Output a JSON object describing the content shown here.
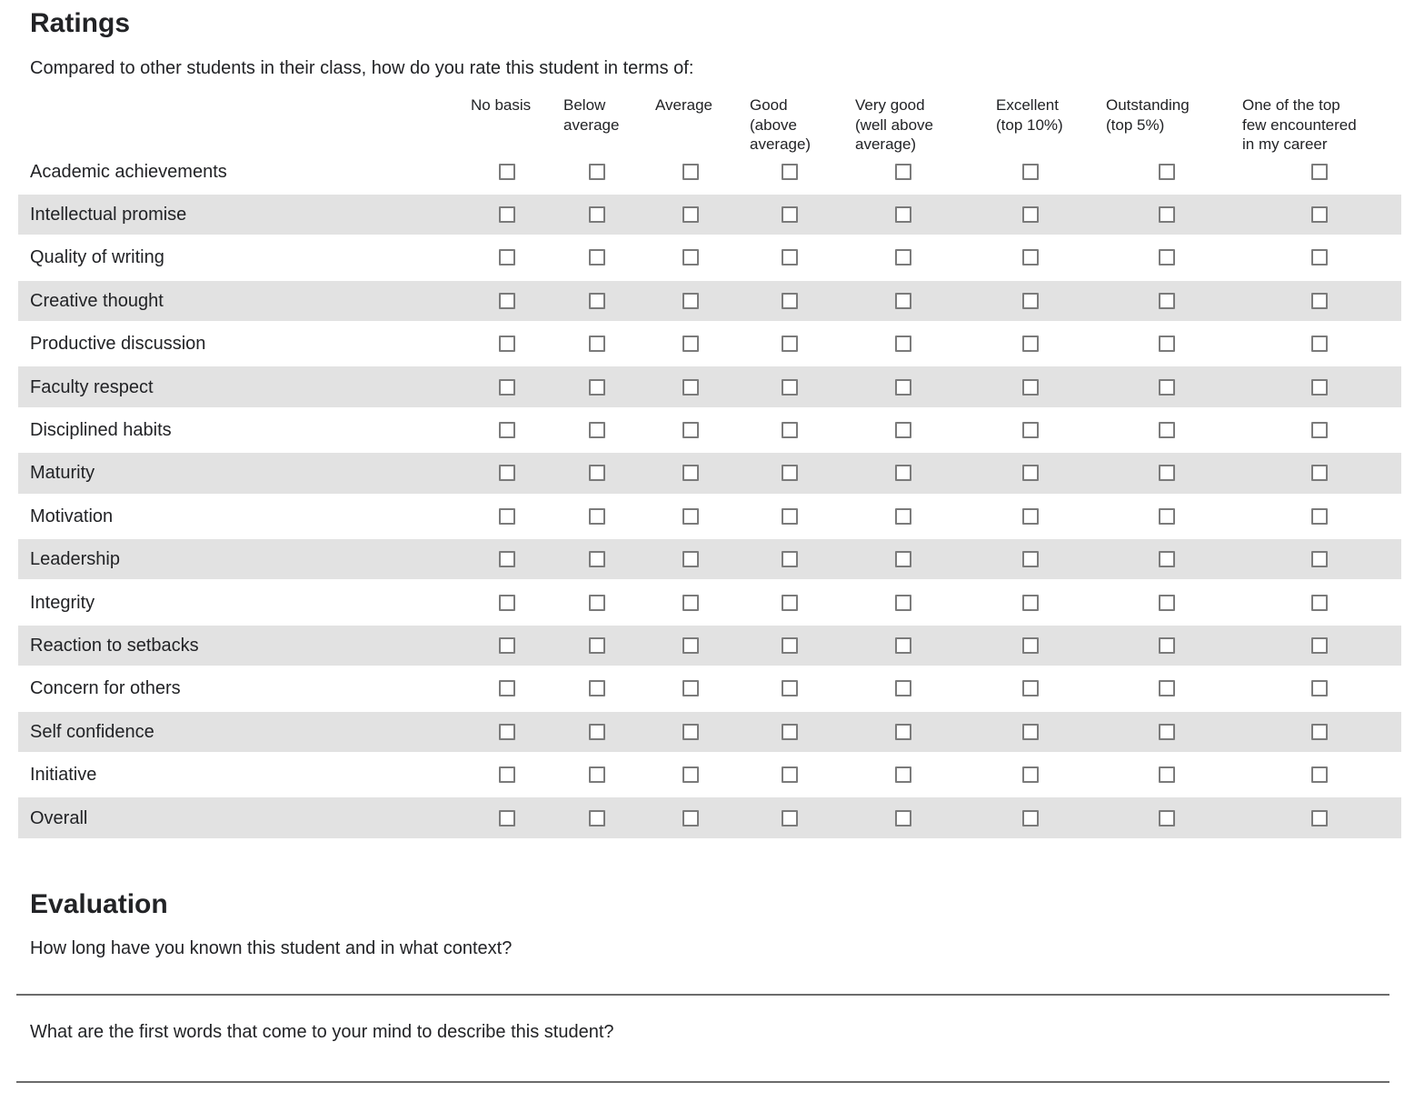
{
  "ratings": {
    "title": "Ratings",
    "intro": "Compared to other students in their class, how do you rate this student in terms of:",
    "columns": [
      {
        "label": "No basis"
      },
      {
        "label": "Below\naverage"
      },
      {
        "label": "Average"
      },
      {
        "label": "Good\n(above\naverage)"
      },
      {
        "label": "Very good\n(well above\naverage)"
      },
      {
        "label": "Excellent\n(top 10%)"
      },
      {
        "label": "Outstanding\n(top 5%)"
      },
      {
        "label": "One of the top\nfew encountered\nin my career"
      }
    ],
    "rows": [
      {
        "label": "Academic achievements"
      },
      {
        "label": "Intellectual promise"
      },
      {
        "label": "Quality of writing"
      },
      {
        "label": "Creative thought"
      },
      {
        "label": "Productive discussion"
      },
      {
        "label": "Faculty respect"
      },
      {
        "label": "Disciplined habits"
      },
      {
        "label": "Maturity"
      },
      {
        "label": "Motivation"
      },
      {
        "label": "Leadership"
      },
      {
        "label": "Integrity"
      },
      {
        "label": "Reaction to setbacks"
      },
      {
        "label": "Concern for others"
      },
      {
        "label": "Self confidence"
      },
      {
        "label": "Initiative"
      },
      {
        "label": "Overall"
      }
    ],
    "all_checkboxes_unchecked": true
  },
  "evaluation": {
    "title": "Evaluation",
    "questions": [
      {
        "label": "How long have you known this student and in what context?",
        "value": ""
      },
      {
        "label": "What are the first words that come to your mind to describe this student?",
        "value": ""
      }
    ]
  },
  "colors": {
    "text": "#222326",
    "row_shade": "#e2e2e2",
    "checkbox_border": "#7b7b7b",
    "answer_line": "#6b6b6b"
  }
}
